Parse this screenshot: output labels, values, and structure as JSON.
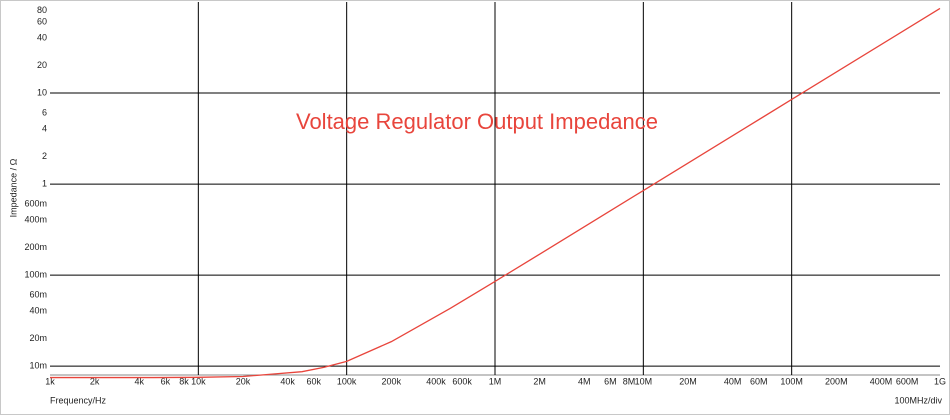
{
  "chart_data": {
    "type": "line",
    "title": "Voltage Regulator Output Impedance",
    "xlabel": "Frequency/Hz",
    "ylabel": "Impedance / Ω",
    "annotation": "100MHz/div",
    "x_log": true,
    "y_log": true,
    "grid": true,
    "xlim": [
      1000,
      1000000000
    ],
    "ylim": [
      0.008,
      100
    ],
    "xticks": [
      {
        "value": 1000,
        "label": "1k"
      },
      {
        "value": 2000,
        "label": "2k"
      },
      {
        "value": 4000,
        "label": "4k"
      },
      {
        "value": 6000,
        "label": "6k"
      },
      {
        "value": 8000,
        "label": "8k"
      },
      {
        "value": 10000,
        "label": "10k"
      },
      {
        "value": 20000,
        "label": "20k"
      },
      {
        "value": 40000,
        "label": "40k"
      },
      {
        "value": 60000,
        "label": "60k"
      },
      {
        "value": 100000,
        "label": "100k"
      },
      {
        "value": 200000,
        "label": "200k"
      },
      {
        "value": 400000,
        "label": "400k"
      },
      {
        "value": 600000,
        "label": "600k"
      },
      {
        "value": 1000000,
        "label": "1M"
      },
      {
        "value": 2000000,
        "label": "2M"
      },
      {
        "value": 4000000,
        "label": "4M"
      },
      {
        "value": 6000000,
        "label": "6M"
      },
      {
        "value": 8000000,
        "label": "8M"
      },
      {
        "value": 10000000,
        "label": "10M"
      },
      {
        "value": 20000000,
        "label": "20M"
      },
      {
        "value": 40000000,
        "label": "40M"
      },
      {
        "value": 60000000,
        "label": "60M"
      },
      {
        "value": 100000000,
        "label": "100M"
      },
      {
        "value": 200000000,
        "label": "200M"
      },
      {
        "value": 400000000,
        "label": "400M"
      },
      {
        "value": 600000000,
        "label": "600M"
      },
      {
        "value": 1000000000,
        "label": "1G"
      }
    ],
    "yticks": [
      {
        "value": 0.01,
        "label": "10m"
      },
      {
        "value": 0.02,
        "label": "20m"
      },
      {
        "value": 0.04,
        "label": "40m"
      },
      {
        "value": 0.06,
        "label": "60m"
      },
      {
        "value": 0.1,
        "label": "100m"
      },
      {
        "value": 0.2,
        "label": "200m"
      },
      {
        "value": 0.4,
        "label": "400m"
      },
      {
        "value": 0.6,
        "label": "600m"
      },
      1,
      2,
      4,
      6,
      10,
      20,
      40,
      60,
      80
    ],
    "x": [
      1000,
      2000,
      5000,
      10000,
      20000,
      50000,
      70000,
      100000,
      200000,
      500000,
      1000000,
      2000000,
      5000000,
      10000000,
      100000000,
      1000000000
    ],
    "series": [
      {
        "name": "Impedance",
        "color": "#e8453c",
        "values": [
          0.0075,
          0.0075,
          0.0075,
          0.00755,
          0.0077,
          0.0087,
          0.0097,
          0.0113,
          0.0186,
          0.0432,
          0.0853,
          0.17,
          0.425,
          0.85,
          8.5,
          85
        ]
      }
    ]
  }
}
